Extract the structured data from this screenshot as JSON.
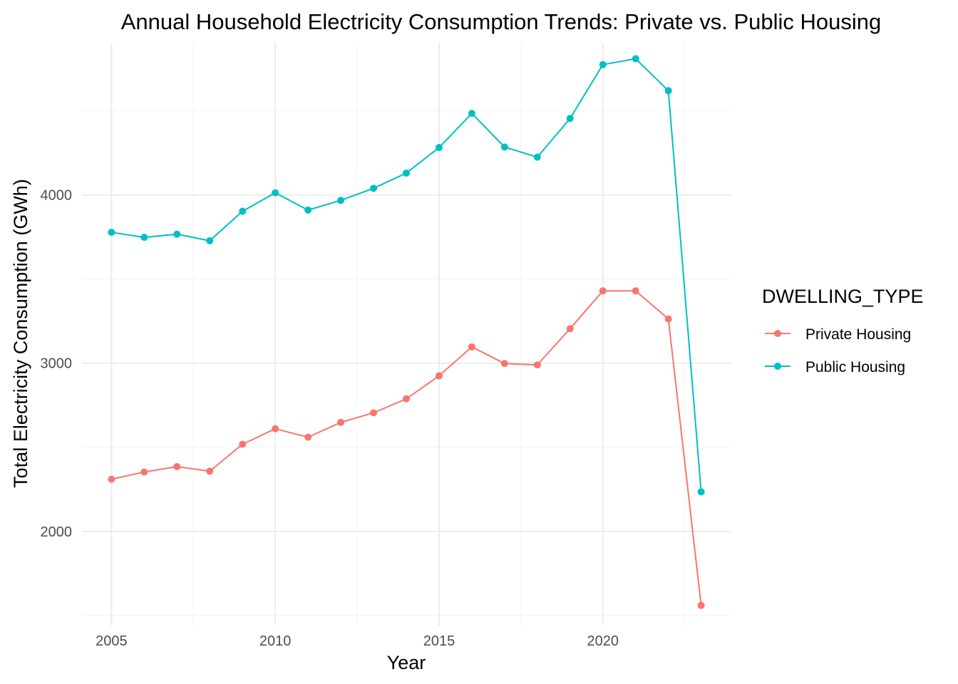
{
  "chart_data": {
    "type": "line",
    "title": "Annual Household Electricity Consumption Trends: Private vs. Public Housing",
    "xlabel": "Year",
    "ylabel": "Total Electricity Consumption (GWh)",
    "x": [
      2005,
      2006,
      2007,
      2008,
      2009,
      2010,
      2011,
      2012,
      2013,
      2014,
      2015,
      2016,
      2017,
      2018,
      2019,
      2020,
      2021,
      2022,
      2023
    ],
    "xlim": [
      2004.1,
      2023.9
    ],
    "ylim": [
      1440,
      4905
    ],
    "x_ticks": [
      2005,
      2010,
      2015,
      2020
    ],
    "x_minor_ticks": [
      2007.5,
      2012.5,
      2017.5,
      2022.5
    ],
    "y_ticks": [
      2000,
      3000,
      4000
    ],
    "y_minor_ticks": [
      1500,
      2500,
      3500,
      4500
    ],
    "grid": true,
    "legend": {
      "title": "DWELLING_TYPE",
      "position": "right"
    },
    "series": [
      {
        "name": "Private Housing",
        "color": "#F8766D",
        "values": [
          2310,
          2353,
          2385,
          2358,
          2518,
          2610,
          2560,
          2648,
          2705,
          2788,
          2925,
          3097,
          2998,
          2990,
          3205,
          3430,
          3430,
          3263,
          1560
        ]
      },
      {
        "name": "Public Housing",
        "color": "#00BFC4",
        "values": [
          3778,
          3748,
          3767,
          3728,
          3903,
          4013,
          3910,
          3968,
          4040,
          4130,
          4282,
          4485,
          4285,
          4225,
          4455,
          4775,
          4810,
          4620,
          2235
        ]
      }
    ]
  }
}
